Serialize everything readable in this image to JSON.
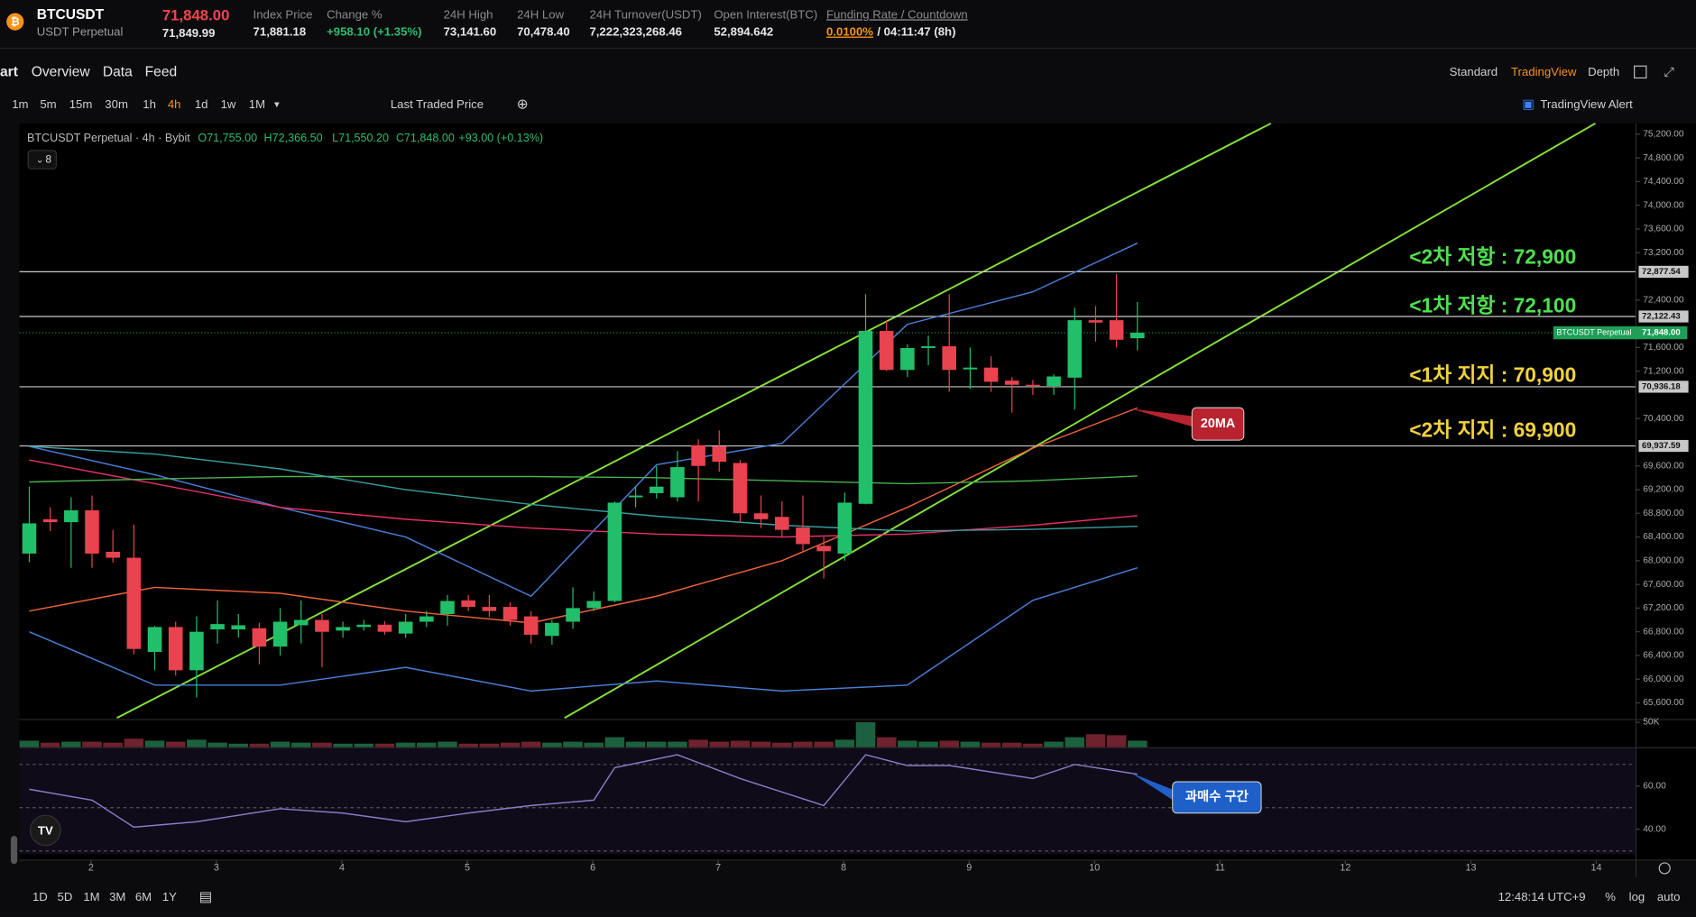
{
  "header": {
    "symbol": "BTCUSDT",
    "contract": "USDT Perpetual",
    "last_price": "71,848.00",
    "mark_price": "71,849.99",
    "stats": [
      {
        "label": "Index Price",
        "value": "71,881.18"
      },
      {
        "label": "Change %",
        "value": "+958.10 (+1.35%)"
      },
      {
        "label": "24H High",
        "value": "73,141.60"
      },
      {
        "label": "24H Low",
        "value": "70,478.40"
      },
      {
        "label": "24H Turnover(USDT)",
        "value": "7,222,323,268.46"
      },
      {
        "label": "Open Interest(BTC)",
        "value": "52,894.642"
      }
    ],
    "funding": {
      "label": "Funding Rate / Countdown",
      "rate": "0.0100%",
      "countdown": "/ 04:11:47 (8h)"
    }
  },
  "nav": {
    "tabs": [
      "art",
      "Overview",
      "Data",
      "Feed"
    ],
    "views": [
      "Standard",
      "TradingView",
      "Depth"
    ]
  },
  "toolbar": {
    "intervals": [
      "1m",
      "5m",
      "15m",
      "30m",
      "1h",
      "4h",
      "1d",
      "1w",
      "1M"
    ],
    "price_source": "Last Traded Price",
    "alert": "TradingView Alert"
  },
  "chart_data": [
    {
      "type": "candlestick",
      "legend": {
        "symbol": "BTCUSDT Perpetual · 4h · Bybit",
        "open": "O71,755.00",
        "high": "H72,366.50",
        "low": "L71,550.20",
        "close": "C71,848.00",
        "change": "+93.00 (+0.13%)"
      },
      "indicator_count": "8",
      "open": [
        68120,
        68700,
        68650,
        68850,
        68150,
        68050,
        66460,
        66880,
        66150,
        66840,
        66840,
        66860,
        66550,
        66910,
        67000,
        66820,
        66880,
        66920,
        66770,
        66970,
        67100,
        67330,
        67220,
        67220,
        67060,
        66730,
        66970,
        67200,
        67320,
        69070,
        69140,
        69070,
        69950,
        69930,
        69650,
        68800,
        68740,
        68560,
        68250,
        68120,
        68960,
        71880,
        71220,
        71590,
        71620,
        71230,
        71260,
        71040,
        70970,
        70950,
        71090,
        72060,
        72060,
        71755
      ],
      "high": [
        69250,
        68900,
        69070,
        69100,
        68520,
        68610,
        66900,
        66970,
        67060,
        67330,
        67100,
        66950,
        67200,
        67330,
        67100,
        66970,
        67000,
        66980,
        67100,
        67150,
        67420,
        67420,
        67420,
        67300,
        67150,
        67000,
        67550,
        67480,
        69000,
        69250,
        69600,
        69850,
        70050,
        70200,
        69700,
        69100,
        69000,
        69100,
        68400,
        69150,
        72500,
        72050,
        71650,
        71800,
        72500,
        71600,
        71450,
        71100,
        71050,
        71150,
        72270,
        72300,
        72840,
        72366.5
      ],
      "low": [
        67975,
        68500,
        67880,
        67880,
        67970,
        66420,
        66150,
        66060,
        65690,
        66600,
        66700,
        66250,
        66400,
        66600,
        66200,
        66700,
        66820,
        66750,
        66700,
        66880,
        66900,
        67150,
        67050,
        66900,
        66600,
        66580,
        66850,
        67150,
        67300,
        68900,
        69050,
        69000,
        69000,
        69500,
        68650,
        68550,
        68400,
        68150,
        67700,
        68000,
        68950,
        71200,
        71100,
        71300,
        70850,
        70900,
        70850,
        70500,
        70800,
        70800,
        70550,
        71700,
        71600,
        71550.2
      ],
      "close": [
        68630,
        68650,
        68850,
        68120,
        68050,
        66510,
        66880,
        66150,
        66800,
        66930,
        66910,
        66550,
        66970,
        67000,
        66800,
        66880,
        66920,
        66800,
        66970,
        67060,
        67320,
        67220,
        67150,
        67000,
        66750,
        66950,
        67200,
        67320,
        68980,
        69100,
        69250,
        69580,
        69600,
        69670,
        68800,
        68700,
        68520,
        68280,
        68160,
        68980,
        71880,
        71220,
        71590,
        71620,
        71220,
        71260,
        71020,
        70970,
        70950,
        71110,
        72060,
        72020,
        71730,
        71848
      ],
      "up_color": "#22bf6b",
      "down_color": "#e8434f",
      "xlim": [
        -0.47,
        76.82
      ],
      "xticks": [
        {
          "value": 2.95,
          "label": "2"
        },
        {
          "value": 8.95,
          "label": "3"
        },
        {
          "value": 14.95,
          "label": "4"
        },
        {
          "value": 20.95,
          "label": "5"
        },
        {
          "value": 26.95,
          "label": "6"
        },
        {
          "value": 32.95,
          "label": "7"
        },
        {
          "value": 38.95,
          "label": "8"
        },
        {
          "value": 44.95,
          "label": "9"
        },
        {
          "value": 50.95,
          "label": "10"
        },
        {
          "value": 56.95,
          "label": "11"
        },
        {
          "value": 62.95,
          "label": "12"
        },
        {
          "value": 68.95,
          "label": "13"
        },
        {
          "value": 74.95,
          "label": "14"
        }
      ],
      "ylim": [
        65345,
        75383
      ],
      "yticks": [
        {
          "value": 75200,
          "label": "75,200.00"
        },
        {
          "value": 74800,
          "label": "74,800.00"
        },
        {
          "value": 74400,
          "label": "74,400.00"
        },
        {
          "value": 74000,
          "label": "74,000.00"
        },
        {
          "value": 73600,
          "label": "73,600.00"
        },
        {
          "value": 73200,
          "label": "73,200.00"
        },
        {
          "value": 72400,
          "label": "72,400.00"
        },
        {
          "value": 71600,
          "label": "71,600.00"
        },
        {
          "value": 71200,
          "label": "71,200.00"
        },
        {
          "value": 70400,
          "label": "70,400.00"
        },
        {
          "value": 69600,
          "label": "69,600.00"
        },
        {
          "value": 69200,
          "label": "69,200.00"
        },
        {
          "value": 68800,
          "label": "68,800.00"
        },
        {
          "value": 68400,
          "label": "68,400.00"
        },
        {
          "value": 68000,
          "label": "68,000.00"
        },
        {
          "value": 67600,
          "label": "67,600.00"
        },
        {
          "value": 67200,
          "label": "67,200.00"
        },
        {
          "value": 66800,
          "label": "66,800.00"
        },
        {
          "value": 66400,
          "label": "66,400.00"
        },
        {
          "value": 66000,
          "label": "66,000.00"
        },
        {
          "value": 65600,
          "label": "65,600.00"
        }
      ],
      "levels": [
        {
          "value": 72877.54,
          "label": "72,877.54"
        },
        {
          "value": 72122.43,
          "label": "72,122.43"
        },
        {
          "value": 70936.18,
          "label": "70,936.18"
        },
        {
          "value": 69937.59,
          "label": "69,937.59"
        }
      ],
      "level_color": "#c8c8c8",
      "last_price": {
        "name": "BTCUSDT Perpetual",
        "value": 71848,
        "label": "71,848.00",
        "color": "#1e9e56"
      },
      "overlays": [
        {
          "color": "#4a7fd8",
          "x": [
            0,
            6,
            12,
            18,
            24,
            30,
            36,
            42,
            48,
            53
          ],
          "values": [
            69930,
            69450,
            68900,
            68400,
            67400,
            69620,
            69980,
            71990,
            72540,
            73360
          ]
        },
        {
          "color": "#4a7fd8",
          "x": [
            0,
            6,
            12,
            18,
            24,
            30,
            36,
            42,
            48,
            53
          ],
          "values": [
            66800,
            65900,
            65900,
            66200,
            65800,
            65970,
            65800,
            65900,
            67330,
            67880
          ]
        },
        {
          "color": "#f0643c",
          "x": [
            0,
            6,
            12,
            18,
            24,
            30,
            36,
            42,
            48,
            53
          ],
          "values": [
            67150,
            67550,
            67450,
            67150,
            66950,
            67400,
            68000,
            68900,
            69900,
            70580
          ]
        },
        {
          "color": "#e8306a",
          "x": [
            0,
            6,
            12,
            18,
            24,
            30,
            36,
            42,
            48,
            53
          ],
          "values": [
            69700,
            69300,
            68900,
            68700,
            68550,
            68450,
            68400,
            68450,
            68600,
            68760
          ]
        },
        {
          "color": "#4caf50",
          "x": [
            0,
            6,
            12,
            18,
            24,
            30,
            36,
            42,
            48,
            53
          ],
          "values": [
            69330,
            69380,
            69420,
            69420,
            69420,
            69400,
            69350,
            69300,
            69350,
            69430
          ]
        },
        {
          "color": "#3aa0a0",
          "x": [
            0,
            6,
            12,
            18,
            24,
            30,
            36,
            42,
            48,
            53
          ],
          "values": [
            69930,
            69800,
            69550,
            69200,
            68950,
            68750,
            68600,
            68500,
            68530,
            68580
          ]
        }
      ]
    },
    {
      "type": "bar",
      "values": [
        13000,
        9000,
        11000,
        11000,
        9000,
        17000,
        13000,
        11000,
        15000,
        9000,
        7000,
        7000,
        11000,
        9000,
        9000,
        7000,
        7000,
        7000,
        9000,
        9000,
        11000,
        7000,
        7000,
        9000,
        11000,
        9000,
        11000,
        9000,
        20000,
        11000,
        11000,
        11000,
        15000,
        11000,
        13000,
        11000,
        9000,
        11000,
        11000,
        15000,
        50000,
        20000,
        13000,
        11000,
        13000,
        11000,
        9000,
        9000,
        7000,
        11000,
        20000,
        26000,
        24000,
        13000
      ],
      "ylim": [
        0,
        56500
      ],
      "yticks": [
        {
          "value": 50000,
          "label": "50K"
        }
      ]
    },
    {
      "type": "line",
      "x": [
        0,
        3,
        5,
        8,
        12,
        15,
        18,
        21,
        24,
        27,
        28,
        31,
        34,
        38,
        40,
        42,
        44,
        48,
        50,
        53
      ],
      "values": [
        58.5,
        53.5,
        41,
        43.5,
        49.5,
        47.5,
        43.5,
        47.5,
        51,
        53.5,
        68.5,
        74.5,
        63.5,
        51,
        74.5,
        69.5,
        69.5,
        63.5,
        70,
        65.5
      ],
      "color": "#8a7cc8",
      "ylim": [
        28.5,
        77.5
      ],
      "yticks": [
        {
          "value": 60,
          "label": "60.00"
        },
        {
          "value": 40,
          "label": "40.00"
        }
      ],
      "levels": [
        70,
        50,
        30
      ]
    }
  ],
  "annotations": [
    {
      "text": "<2차 저항 : 72,900",
      "color": "#4fe04f"
    },
    {
      "text": "<1차 저항 : 72,100",
      "color": "#4fe04f"
    },
    {
      "text": "<1차 지지 : 70,900",
      "color": "#f2d23c"
    },
    {
      "text": "<2차 지지 : 69,900",
      "color": "#f2d23c"
    }
  ],
  "callouts": [
    {
      "text": "20MA",
      "color": "#b8232f"
    },
    {
      "text": "과매수 구간",
      "color": "#1f5fc8"
    }
  ],
  "footer": {
    "ranges": [
      "1D",
      "5D",
      "1M",
      "3M",
      "6M",
      "1Y"
    ],
    "clock": "12:48:14 UTC+9",
    "scale_options": [
      "%",
      "log",
      "auto"
    ]
  }
}
